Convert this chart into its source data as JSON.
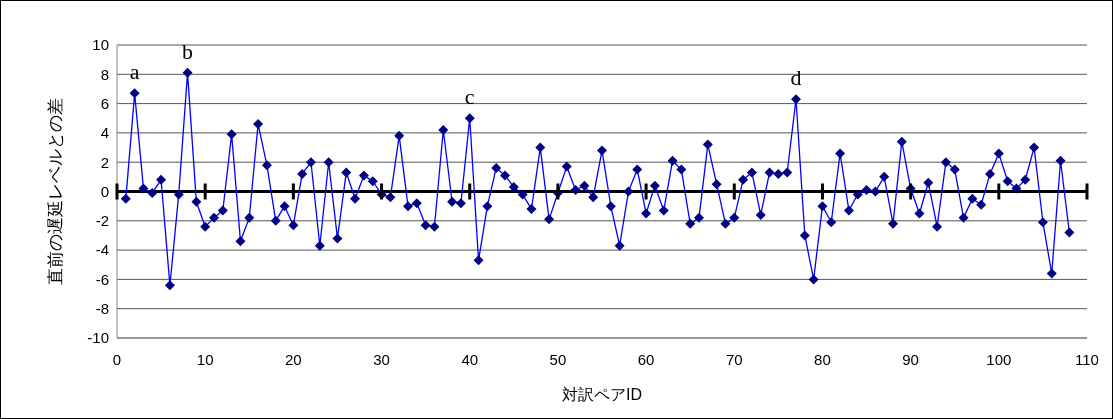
{
  "chart_data": {
    "type": "line",
    "xlabel": "対訳ペアID",
    "ylabel": "直前の遅延レベルとの差",
    "x": [
      1,
      2,
      3,
      4,
      5,
      6,
      7,
      8,
      9,
      10,
      11,
      12,
      13,
      14,
      15,
      16,
      17,
      18,
      19,
      20,
      21,
      22,
      23,
      24,
      25,
      26,
      27,
      28,
      29,
      30,
      31,
      32,
      33,
      34,
      35,
      36,
      37,
      38,
      39,
      40,
      41,
      42,
      43,
      44,
      45,
      46,
      47,
      48,
      49,
      50,
      51,
      52,
      53,
      54,
      55,
      56,
      57,
      58,
      59,
      60,
      61,
      62,
      63,
      64,
      65,
      66,
      67,
      68,
      69,
      70,
      71,
      72,
      73,
      74,
      75,
      76,
      77,
      78,
      79,
      80,
      81,
      82,
      83,
      84,
      85,
      86,
      87,
      88,
      89,
      90,
      91,
      92,
      93,
      94,
      95,
      96,
      97,
      98,
      99,
      100,
      101,
      102,
      103,
      104,
      105,
      106,
      107,
      108
    ],
    "series": [
      {
        "color": "#0000ff",
        "values": [
          -0.5,
          6.7,
          0.2,
          -0.1,
          0.8,
          -6.4,
          -0.2,
          8.1,
          -0.7,
          -2.4,
          -1.8,
          -1.3,
          3.9,
          -3.4,
          -1.8,
          4.6,
          1.8,
          -2.0,
          -1.0,
          -2.3,
          1.2,
          2.0,
          -3.7,
          2.0,
          -3.2,
          1.3,
          -0.5,
          1.1,
          0.7,
          -0.2,
          -0.4,
          3.8,
          -1.0,
          -0.8,
          -2.3,
          -2.4,
          4.2,
          -0.7,
          -0.8,
          5.0,
          -4.7,
          -1.0,
          1.6,
          1.1,
          0.3,
          -0.2,
          -1.2,
          3.0,
          -1.9,
          -0.1,
          1.7,
          0.1,
          0.4,
          -0.4,
          2.8,
          -1.0,
          -3.7,
          0.0,
          1.5,
          -1.5,
          0.4,
          -1.3,
          2.1,
          1.5,
          -2.2,
          -1.8,
          3.2,
          0.5,
          -2.2,
          -1.8,
          0.8,
          1.3,
          -1.6,
          1.3,
          1.2,
          1.3,
          6.3,
          -3.0,
          -6.0,
          -1.0,
          -2.1,
          2.6,
          -1.3,
          -0.2,
          0.1,
          0.0,
          1.0,
          -2.2,
          3.4,
          0.2,
          -1.5,
          0.6,
          -2.4,
          2.0,
          1.5,
          -1.8,
          -0.5,
          -0.9,
          1.2,
          2.6,
          0.7,
          0.2,
          0.8,
          3.0,
          -2.1,
          -5.6,
          2.1,
          -2.8
        ]
      }
    ],
    "xlim": [
      0,
      110
    ],
    "xticks": [
      0,
      10,
      20,
      30,
      40,
      50,
      60,
      70,
      80,
      90,
      100,
      110
    ],
    "ylim": [
      -10,
      10
    ],
    "yticks": [
      -10,
      -8,
      -6,
      -4,
      -2,
      0,
      2,
      4,
      6,
      8,
      10
    ],
    "grid": "y",
    "legend": false,
    "marker": "diamond",
    "line_style": "solid",
    "annotations": [
      {
        "text": "a",
        "x": 2,
        "y": 6.7
      },
      {
        "text": "b",
        "x": 8,
        "y": 8.1
      },
      {
        "text": "c",
        "x": 40,
        "y": 5.0
      },
      {
        "text": "d",
        "x": 77,
        "y": 6.3
      }
    ]
  }
}
